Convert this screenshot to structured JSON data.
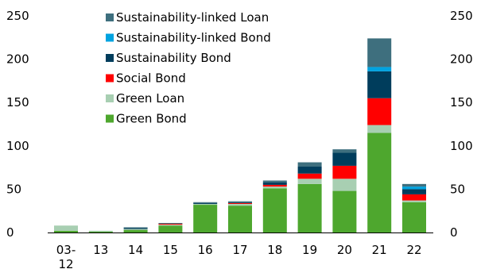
{
  "chart_data": {
    "type": "bar",
    "stacked": true,
    "categories": [
      "03-12",
      "13",
      "14",
      "15",
      "16",
      "17",
      "18",
      "19",
      "20",
      "21",
      "22"
    ],
    "series": [
      {
        "name": "Green Bond",
        "color": "#4ea72e",
        "values": [
          2,
          1,
          3,
          8,
          32,
          31,
          51,
          56,
          48,
          115,
          35
        ]
      },
      {
        "name": "Green Loan",
        "color": "#a8cfb2",
        "values": [
          6,
          1,
          1,
          1,
          1,
          2,
          2,
          6,
          14,
          9,
          2
        ]
      },
      {
        "name": "Social Bond",
        "color": "#ff0000",
        "values": [
          0,
          0,
          0,
          1,
          0,
          1,
          2,
          6,
          15,
          31,
          7
        ]
      },
      {
        "name": "Sustainability Bond",
        "color": "#003d5c",
        "values": [
          0,
          0,
          1,
          0,
          1,
          1,
          3,
          8,
          15,
          31,
          6
        ]
      },
      {
        "name": "Sustainability-linked Bond",
        "color": "#00a3e0",
        "values": [
          0,
          0,
          0,
          0,
          0,
          0,
          0,
          0,
          0,
          5,
          3
        ]
      },
      {
        "name": "Sustainability-linked Loan",
        "color": "#3e6f7e",
        "values": [
          0,
          0,
          1,
          1,
          1,
          1,
          2,
          5,
          4,
          33,
          3
        ]
      }
    ],
    "legend_order": [
      "Sustainability-linked Loan",
      "Sustainability-linked Bond",
      "Sustainability Bond",
      "Social Bond",
      "Green Loan",
      "Green Bond"
    ],
    "legend_position": "top-left",
    "ylim": [
      0,
      250
    ],
    "yticks": [
      0,
      50,
      100,
      150,
      200,
      250
    ],
    "left_axis_labels": [
      "0",
      "50",
      "100",
      "150",
      "200",
      "250"
    ],
    "right_axis_labels": [
      "0",
      "50",
      "100",
      "150",
      "200",
      "250"
    ],
    "grid": false
  }
}
